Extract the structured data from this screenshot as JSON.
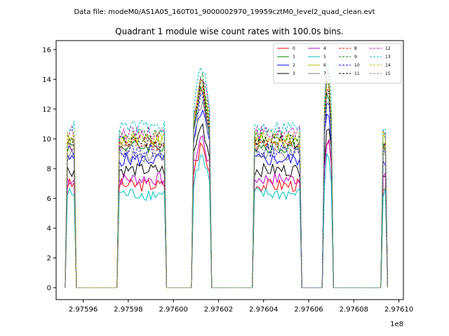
{
  "figure": {
    "suptitle": "Data file: modeM0/AS1A05_160T01_9000002970_19959cztM0_level2_quad_clean.evt"
  },
  "chart_data": {
    "type": "line",
    "title": "Quadrant 1 module wise count rates with 100.0s bins.",
    "xlabel": "",
    "ylabel": "",
    "x_offset_label": "1e8",
    "xlim": [
      2.975948,
      2.976102
    ],
    "ylim": [
      -0.8,
      16.6
    ],
    "xticks": [
      2.97596,
      2.97598,
      2.976,
      2.97602,
      2.97604,
      2.97606,
      2.97608,
      2.9761
    ],
    "xtick_labels": [
      "2.97596",
      "2.97598",
      "2.97600",
      "2.97602",
      "2.97604",
      "2.97606",
      "2.97608",
      "2.97610"
    ],
    "yticks": [
      0,
      2,
      4,
      6,
      8,
      10,
      12,
      14,
      16
    ],
    "ytick_labels": [
      "0",
      "2",
      "4",
      "6",
      "8",
      "10",
      "12",
      "14",
      "16"
    ],
    "grid": false,
    "legend_position": "top-right",
    "legend_columns": 4,
    "segments": [
      {
        "start": 2.975953,
        "end": 2.975956,
        "level": 1.0
      },
      {
        "start": 2.975976,
        "end": 2.975996,
        "level": 1.0
      },
      {
        "start": 2.976009,
        "end": 2.976016,
        "level": 1.3
      },
      {
        "start": 2.976036,
        "end": 2.976056,
        "level": 1.0
      },
      {
        "start": 2.976067,
        "end": 2.97607,
        "level": 1.35
      },
      {
        "start": 2.976093,
        "end": 2.976094,
        "level": 1.0
      }
    ],
    "series": [
      {
        "name": "0",
        "color": "#ff0000",
        "dashed": false,
        "base": 6.9
      },
      {
        "name": "1",
        "color": "#008000",
        "dashed": false,
        "base": 9.5
      },
      {
        "name": "2",
        "color": "#0000ff",
        "dashed": false,
        "base": 8.6
      },
      {
        "name": "3",
        "color": "#000000",
        "dashed": false,
        "base": 7.9
      },
      {
        "name": "4",
        "color": "#bf00bf",
        "dashed": false,
        "base": 7.3
      },
      {
        "name": "5",
        "color": "#00bfbf",
        "dashed": false,
        "base": 6.3
      },
      {
        "name": "6",
        "color": "#bfbf00",
        "dashed": false,
        "base": 9.9
      },
      {
        "name": "7",
        "color": "#808080",
        "dashed": false,
        "base": 8.9
      },
      {
        "name": "8",
        "color": "#ff0000",
        "dashed": true,
        "base": 9.6
      },
      {
        "name": "9",
        "color": "#008000",
        "dashed": true,
        "base": 10.2
      },
      {
        "name": "10",
        "color": "#0000ff",
        "dashed": true,
        "base": 9.2
      },
      {
        "name": "11",
        "color": "#000000",
        "dashed": true,
        "base": 9.8
      },
      {
        "name": "12",
        "color": "#bf00bf",
        "dashed": true,
        "base": 10.4
      },
      {
        "name": "13",
        "color": "#00bfbf",
        "dashed": true,
        "base": 10.8
      },
      {
        "name": "14",
        "color": "#bfbf00",
        "dashed": true,
        "base": 10.1
      },
      {
        "name": "15",
        "color": "#808080",
        "dashed": true,
        "base": 9.4
      }
    ]
  }
}
